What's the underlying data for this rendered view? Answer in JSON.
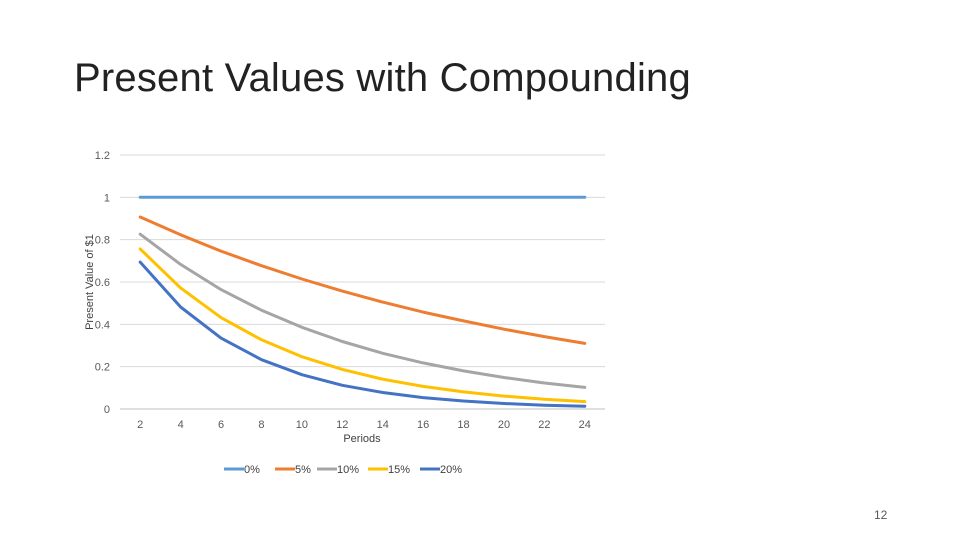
{
  "slide": {
    "title": "Present Values with Compounding",
    "page_number": "12"
  },
  "chart_data": {
    "type": "line",
    "xlabel": "Periods",
    "ylabel": "Present Value of $1",
    "x": [
      2,
      4,
      6,
      8,
      10,
      12,
      14,
      16,
      18,
      20,
      22,
      24
    ],
    "xlim": [
      1,
      25
    ],
    "ylim": [
      0,
      1.2
    ],
    "yticks": [
      0,
      0.2,
      0.4,
      0.6,
      0.8,
      1,
      1.2
    ],
    "ytick_labels": [
      "0",
      "0.2",
      "0.4",
      "0.6",
      "0.8",
      "1",
      "1.2"
    ],
    "grid": true,
    "legend_position": "bottom",
    "series": [
      {
        "name": "0%",
        "color": "#5B9BD5",
        "values": [
          1,
          1,
          1,
          1,
          1,
          1,
          1,
          1,
          1,
          1,
          1,
          1
        ]
      },
      {
        "name": "5%",
        "color": "#ED7D31",
        "values": [
          0.907,
          0.823,
          0.746,
          0.677,
          0.614,
          0.557,
          0.505,
          0.458,
          0.416,
          0.377,
          0.342,
          0.31
        ]
      },
      {
        "name": "10%",
        "color": "#A5A5A5",
        "values": [
          0.826,
          0.683,
          0.564,
          0.467,
          0.386,
          0.319,
          0.263,
          0.218,
          0.18,
          0.149,
          0.123,
          0.102
        ]
      },
      {
        "name": "15%",
        "color": "#FFC000",
        "values": [
          0.756,
          0.572,
          0.432,
          0.327,
          0.247,
          0.187,
          0.141,
          0.107,
          0.081,
          0.061,
          0.046,
          0.035
        ]
      },
      {
        "name": "20%",
        "color": "#4472C4",
        "values": [
          0.694,
          0.482,
          0.335,
          0.233,
          0.162,
          0.112,
          0.078,
          0.054,
          0.038,
          0.026,
          0.018,
          0.013
        ]
      }
    ]
  }
}
